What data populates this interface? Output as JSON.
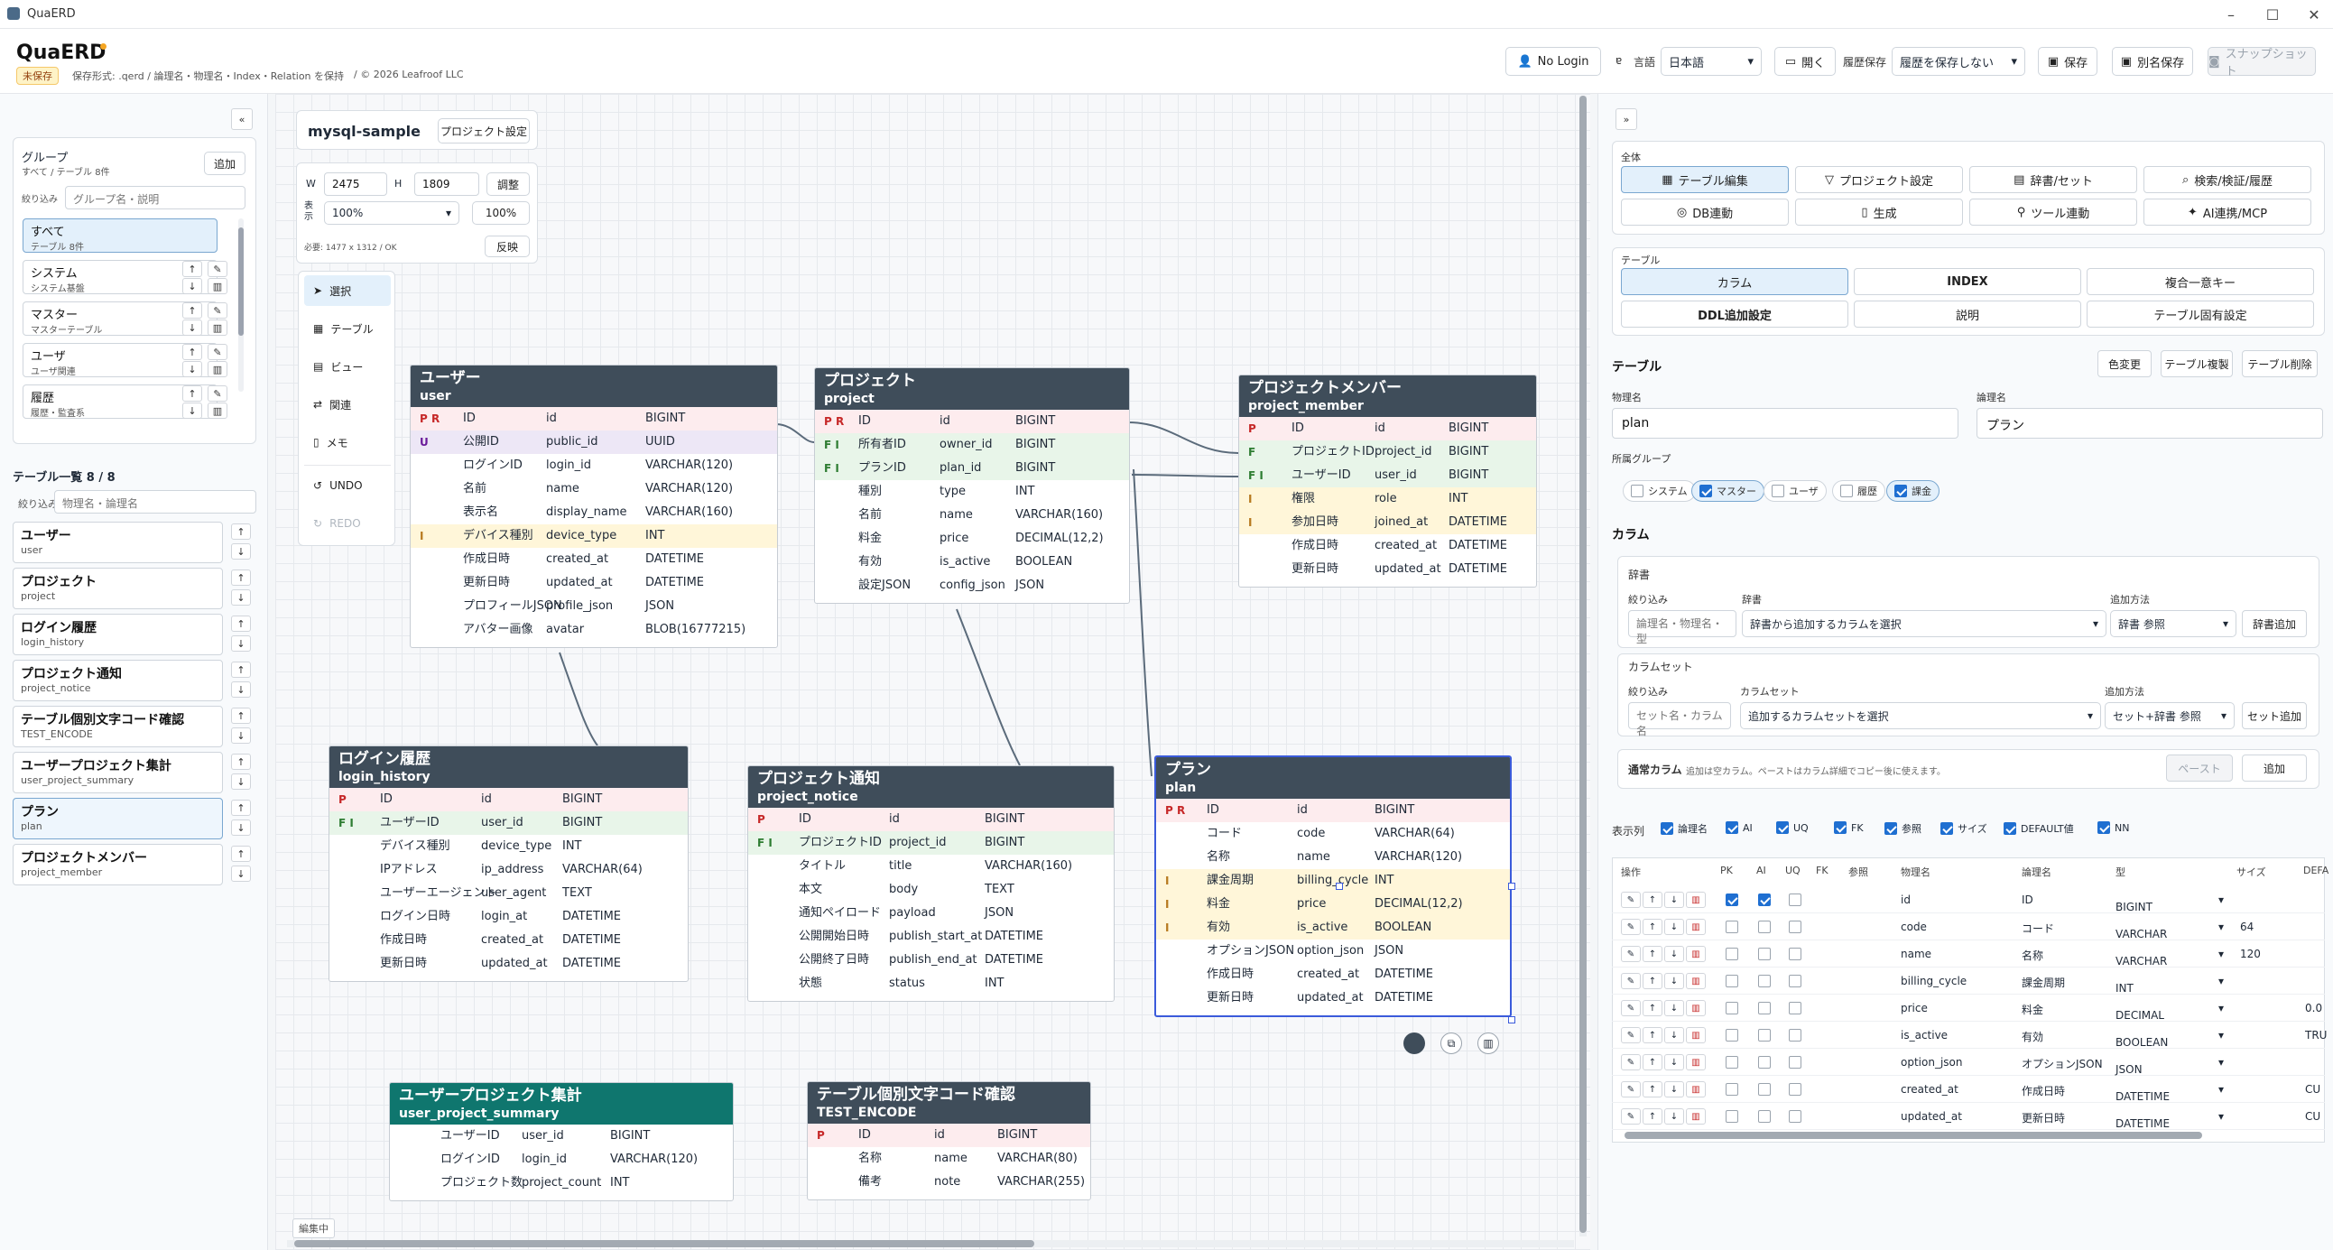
{
  "window": {
    "title": "QuaERD",
    "min": "–",
    "max": "☐",
    "close": "✕"
  },
  "header": {
    "brand": "QuaERD",
    "unsaved": "未保存",
    "info": "保存形式: .qerd / 論理名・物理名・Index・Relation を保持",
    "copyright": "/ © 2026 Leafroof LLC",
    "login": "No Login",
    "lang_label": "言語",
    "lang_value": "日本語",
    "open": "開く",
    "history_label": "履歴保存",
    "history_value": "履歴を保存しない",
    "save": "保存",
    "saveas": "別名保存",
    "snapshot": "スナップショット"
  },
  "left": {
    "collapse": "«",
    "group_title": "グループ",
    "group_sub": "すべて / テーブル 8件",
    "add": "追加",
    "filter_label": "絞り込み",
    "filter_ph": "グループ名・説明",
    "groups": [
      {
        "a": "すべて",
        "b": "テーブル 8件"
      },
      {
        "a": "システム",
        "b": "システム基盤"
      },
      {
        "a": "マスター",
        "b": "マスターテーブル"
      },
      {
        "a": "ユーザ",
        "b": "ユーザ関連"
      },
      {
        "a": "履歴",
        "b": "履歴・監査系"
      }
    ],
    "list_title": "テーブル一覧 8 / 8",
    "list_filter": "物理名・論理名",
    "tables": [
      {
        "a": "ユーザー",
        "b": "user"
      },
      {
        "a": "プロジェクト",
        "b": "project"
      },
      {
        "a": "ログイン履歴",
        "b": "login_history"
      },
      {
        "a": "プロジェクト通知",
        "b": "project_notice"
      },
      {
        "a": "テーブル個別文字コード確認",
        "b": "TEST_ENCODE"
      },
      {
        "a": "ユーザープロジェクト集計",
        "b": "user_project_summary"
      },
      {
        "a": "プラン",
        "b": "plan"
      },
      {
        "a": "プロジェクトメンバー",
        "b": "project_member"
      }
    ]
  },
  "canvas": {
    "project": "mysql-sample",
    "proj_settings": "プロジェクト設定",
    "w_label": "W",
    "w": "2475",
    "h_label": "H",
    "h": "1809",
    "adjust": "調整",
    "view_label": "表示",
    "zoom": "100%",
    "zoom_btn": "100%",
    "required": "必要: 1477 x 1312 / OK",
    "flip": "反映",
    "status": "編集中",
    "tools": [
      "選択",
      "テーブル",
      "ビュー",
      "関連",
      "メモ",
      "UNDO",
      "REDO"
    ]
  },
  "entities": [
    {
      "id": "user",
      "j": "ユーザー",
      "e": "user",
      "rows": [
        [
          "P R",
          "ID",
          "id",
          "BIGINT",
          "pk"
        ],
        [
          "U",
          "公開ID",
          "public_id",
          "UUID",
          "uq"
        ],
        [
          "",
          "ログインID",
          "login_id",
          "VARCHAR(120)",
          ""
        ],
        [
          "",
          "名前",
          "name",
          "VARCHAR(120)",
          ""
        ],
        [
          "",
          "表示名",
          "display_name",
          "VARCHAR(160)",
          ""
        ],
        [
          "I",
          "デバイス種別",
          "device_type",
          "INT",
          "ix"
        ],
        [
          "",
          "作成日時",
          "created_at",
          "DATETIME",
          ""
        ],
        [
          "",
          "更新日時",
          "updated_at",
          "DATETIME",
          ""
        ],
        [
          "",
          "プロフィールJSON",
          "profile_json",
          "JSON",
          ""
        ],
        [
          "",
          "アバター画像",
          "avatar",
          "BLOB(16777215)",
          ""
        ]
      ]
    },
    {
      "id": "project",
      "j": "プロジェクト",
      "e": "project",
      "rows": [
        [
          "P R",
          "ID",
          "id",
          "BIGINT",
          "pk"
        ],
        [
          "F I",
          "所有者ID",
          "owner_id",
          "BIGINT",
          "fk"
        ],
        [
          "F I",
          "プランID",
          "plan_id",
          "BIGINT",
          "fk"
        ],
        [
          "",
          "種別",
          "type",
          "INT",
          ""
        ],
        [
          "",
          "名前",
          "name",
          "VARCHAR(160)",
          ""
        ],
        [
          "",
          "料金",
          "price",
          "DECIMAL(12,2)",
          ""
        ],
        [
          "",
          "有効",
          "is_active",
          "BOOLEAN",
          ""
        ],
        [
          "",
          "設定JSON",
          "config_json",
          "JSON",
          ""
        ]
      ]
    },
    {
      "id": "project_member",
      "j": "プロジェクトメンバー",
      "e": "project_member",
      "rows": [
        [
          "P",
          "ID",
          "id",
          "BIGINT",
          "pk"
        ],
        [
          "F",
          "プロジェクトID",
          "project_id",
          "BIGINT",
          "fk"
        ],
        [
          "F I",
          "ユーザーID",
          "user_id",
          "BIGINT",
          "fk"
        ],
        [
          "I",
          "権限",
          "role",
          "INT",
          "ix"
        ],
        [
          "I",
          "参加日時",
          "joined_at",
          "DATETIME",
          "ix"
        ],
        [
          "",
          "作成日時",
          "created_at",
          "DATETIME",
          ""
        ],
        [
          "",
          "更新日時",
          "updated_at",
          "DATETIME",
          ""
        ]
      ]
    },
    {
      "id": "login_history",
      "j": "ログイン履歴",
      "e": "login_history",
      "rows": [
        [
          "P",
          "ID",
          "id",
          "BIGINT",
          "pk"
        ],
        [
          "F I",
          "ユーザーID",
          "user_id",
          "BIGINT",
          "fk"
        ],
        [
          "",
          "デバイス種別",
          "device_type",
          "INT",
          ""
        ],
        [
          "",
          "IPアドレス",
          "ip_address",
          "VARCHAR(64)",
          ""
        ],
        [
          "",
          "ユーザーエージェント",
          "user_agent",
          "TEXT",
          ""
        ],
        [
          "",
          "ログイン日時",
          "login_at",
          "DATETIME",
          ""
        ],
        [
          "",
          "作成日時",
          "created_at",
          "DATETIME",
          ""
        ],
        [
          "",
          "更新日時",
          "updated_at",
          "DATETIME",
          ""
        ]
      ]
    },
    {
      "id": "project_notice",
      "j": "プロジェクト通知",
      "e": "project_notice",
      "rows": [
        [
          "P",
          "ID",
          "id",
          "BIGINT",
          "pk"
        ],
        [
          "F I",
          "プロジェクトID",
          "project_id",
          "BIGINT",
          "fk"
        ],
        [
          "",
          "タイトル",
          "title",
          "VARCHAR(160)",
          ""
        ],
        [
          "",
          "本文",
          "body",
          "TEXT",
          ""
        ],
        [
          "",
          "通知ペイロード",
          "payload",
          "JSON",
          ""
        ],
        [
          "",
          "公開開始日時",
          "publish_start_at",
          "DATETIME",
          ""
        ],
        [
          "",
          "公開終了日時",
          "publish_end_at",
          "DATETIME",
          ""
        ],
        [
          "",
          "状態",
          "status",
          "INT",
          ""
        ]
      ]
    },
    {
      "id": "plan",
      "j": "プラン",
      "e": "plan",
      "rows": [
        [
          "P R",
          "ID",
          "id",
          "BIGINT",
          "pk"
        ],
        [
          "",
          "コード",
          "code",
          "VARCHAR(64)",
          ""
        ],
        [
          "",
          "名称",
          "name",
          "VARCHAR(120)",
          ""
        ],
        [
          "I",
          "課金周期",
          "billing_cycle",
          "INT",
          "ix"
        ],
        [
          "I",
          "料金",
          "price",
          "DECIMAL(12,2)",
          "ix"
        ],
        [
          "I",
          "有効",
          "is_active",
          "BOOLEAN",
          "ix"
        ],
        [
          "",
          "オプションJSON",
          "option_json",
          "JSON",
          ""
        ],
        [
          "",
          "作成日時",
          "created_at",
          "DATETIME",
          ""
        ],
        [
          "",
          "更新日時",
          "updated_at",
          "DATETIME",
          ""
        ]
      ]
    },
    {
      "id": "user_project_summary",
      "j": "ユーザープロジェクト集計",
      "e": "user_project_summary",
      "rows": [
        [
          "",
          "ユーザーID",
          "user_id",
          "BIGINT",
          ""
        ],
        [
          "",
          "ログインID",
          "login_id",
          "VARCHAR(120)",
          ""
        ],
        [
          "",
          "プロジェクト数",
          "project_count",
          "INT",
          ""
        ]
      ]
    },
    {
      "id": "test_encode",
      "j": "テーブル個別文字コード確認",
      "e": "TEST_ENCODE",
      "rows": [
        [
          "P",
          "ID",
          "id",
          "BIGINT",
          "pk"
        ],
        [
          "",
          "名称",
          "name",
          "VARCHAR(80)",
          ""
        ],
        [
          "",
          "備考",
          "note",
          "VARCHAR(255)",
          ""
        ]
      ]
    }
  ],
  "right": {
    "expand": "»",
    "all_label": "全体",
    "all_btns": [
      "テーブル編集",
      "プロジェクト設定",
      "辞書/セット",
      "検索/検証/履歴",
      "DB連動",
      "生成",
      "ツール連動",
      "AI連携/MCP"
    ],
    "table_label": "テーブル",
    "table_btns": [
      "カラム",
      "INDEX",
      "複合一意キー",
      "DDL追加設定",
      "説明",
      "テーブル固有設定"
    ],
    "table_title": "テーブル",
    "color": "色変更",
    "dup": "テーブル複製",
    "del": "テーブル削除",
    "phys_label": "物理名",
    "phys": "plan",
    "logi_label": "論理名",
    "logi": "プラン",
    "grp_label": "所属グループ",
    "grps": [
      {
        "n": "システム",
        "on": false
      },
      {
        "n": "マスター",
        "on": true
      },
      {
        "n": "ユーザ",
        "on": false
      },
      {
        "n": "履歴",
        "on": false
      },
      {
        "n": "課金",
        "on": true
      }
    ],
    "col_title": "カラム",
    "dict_title": "辞書",
    "f_label": "絞り込み",
    "dict_label": "辞書",
    "add_label": "追加方法",
    "dict_filter": "論理名・物理名・型",
    "dict_select": "辞書から追加するカラムを選択",
    "dict_method": "辞書 参照",
    "dict_add": "辞書追加",
    "set_title": "カラムセット",
    "set_label": "カラムセット",
    "set_filter": "セット名・カラム名",
    "set_select": "追加するカラムセットを選択",
    "set_method": "セット+辞書 参照",
    "set_add": "セット追加",
    "normal_title": "通常カラム",
    "normal_hint": "追加は空カラム。ペーストはカラム詳細でコピー後に使えます。",
    "paste": "ペースト",
    "add": "追加",
    "show_label": "表示列",
    "show": [
      "論理名",
      "AI",
      "UQ",
      "FK",
      "参照",
      "サイズ",
      "DEFAULT値",
      "NN"
    ],
    "cols_head": [
      "操作",
      "PK",
      "AI",
      "UQ",
      "FK",
      "参照",
      "物理名",
      "論理名",
      "型",
      "サイズ",
      "DEFA"
    ],
    "cols": [
      {
        "p": "id",
        "l": "ID",
        "t": "BIGINT",
        "s": "",
        "d": "",
        "pk": true,
        "ai": true
      },
      {
        "p": "code",
        "l": "コード",
        "t": "VARCHAR",
        "s": "64",
        "d": ""
      },
      {
        "p": "name",
        "l": "名称",
        "t": "VARCHAR",
        "s": "120",
        "d": ""
      },
      {
        "p": "billing_cycle",
        "l": "課金周期",
        "t": "INT",
        "s": "",
        "d": ""
      },
      {
        "p": "price",
        "l": "料金",
        "t": "DECIMAL",
        "s": "",
        "d": "0.0"
      },
      {
        "p": "is_active",
        "l": "有効",
        "t": "BOOLEAN",
        "s": "",
        "d": "TRU"
      },
      {
        "p": "option_json",
        "l": "オプションJSON",
        "t": "JSON",
        "s": "",
        "d": ""
      },
      {
        "p": "created_at",
        "l": "作成日時",
        "t": "DATETIME",
        "s": "",
        "d": "CU"
      },
      {
        "p": "updated_at",
        "l": "更新日時",
        "t": "DATETIME",
        "s": "",
        "d": "CU"
      }
    ]
  }
}
